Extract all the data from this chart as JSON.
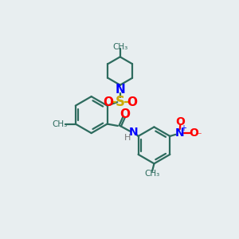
{
  "bg_color": "#e8eef0",
  "bond_color": "#2d6b5e",
  "N_color": "#0000ff",
  "O_color": "#ff0000",
  "S_color": "#ccaa00",
  "figsize": [
    3.0,
    3.0
  ],
  "dpi": 100,
  "xlim": [
    0,
    10
  ],
  "ylim": [
    0,
    10
  ],
  "ring_r": 0.78,
  "pip_r": 0.6,
  "lw": 1.6
}
